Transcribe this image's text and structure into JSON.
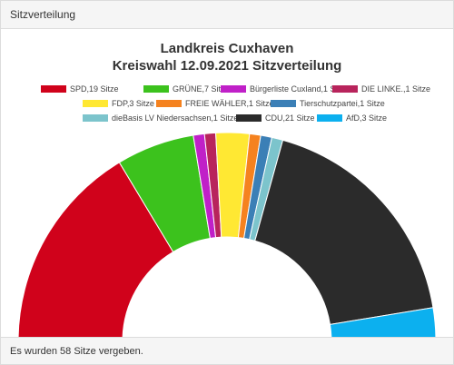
{
  "panel": {
    "title": "Sitzverteilung",
    "footer": "Es wurden 58 Sitze vergeben."
  },
  "chart_data": {
    "type": "pie",
    "variant": "semicircle-parliament",
    "title_line1": "Landkreis Cuxhaven",
    "title_line2": "Kreiswahl 12.09.2021 Sitzverteilung",
    "total": 58,
    "legend_placement": "top",
    "series": [
      {
        "name": "SPD",
        "label": "SPD,19 Sitze",
        "value": 19,
        "color": "#d0021b"
      },
      {
        "name": "GRÜNE",
        "label": "GRÜNE,7 Sitze",
        "value": 7,
        "color": "#3cc21d"
      },
      {
        "name": "Bürgerliste Cuxland",
        "label": "Bürgerliste Cuxland,1 Sitze",
        "value": 1,
        "color": "#c020c8"
      },
      {
        "name": "DIE LINKE.",
        "label": "DIE LINKE.,1 Sitze",
        "value": 1,
        "color": "#b8245c"
      },
      {
        "name": "FDP",
        "label": "FDP,3 Sitze",
        "value": 3,
        "color": "#ffe833"
      },
      {
        "name": "FREIE WÄHLER",
        "label": "FREIE WÄHLER,1 Sitze",
        "value": 1,
        "color": "#f5821f"
      },
      {
        "name": "Tierschutzpartei",
        "label": "Tierschutzpartei,1 Sitze",
        "value": 1,
        "color": "#3b7fb6"
      },
      {
        "name": "dieBasis LV Niedersachsen",
        "label": "dieBasis LV Niedersachsen,1 Sitze",
        "value": 1,
        "color": "#7cc4cc"
      },
      {
        "name": "CDU",
        "label": "CDU,21 Sitze",
        "value": 21,
        "color": "#2b2b2b"
      },
      {
        "name": "AfD",
        "label": "AfD,3 Sitze",
        "value": 3,
        "color": "#0cb0ef"
      }
    ]
  }
}
